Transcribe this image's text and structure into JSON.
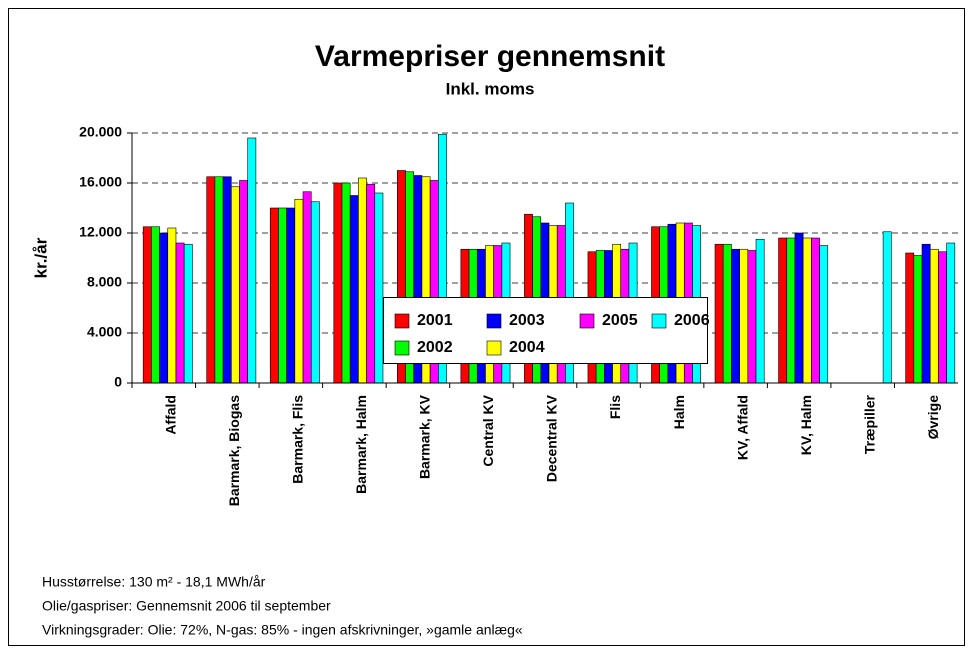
{
  "chart_data": {
    "type": "bar",
    "title": "Varmepriser gennemsnit",
    "subtitle": "Inkl. moms",
    "y_label": "kr./år",
    "categories": [
      "Affald",
      "Barmark, Biogas",
      "Barmark, Flis",
      "Barmark, Halm",
      "Barmark, KV",
      "Central KV",
      "Decentral KV",
      "Flis",
      "Halm",
      "KV, Affald",
      "KV, Halm",
      "Træpiller",
      "Øvrige"
    ],
    "series": [
      {
        "name": "2001",
        "color": "#ff0000",
        "values": [
          12500,
          16500,
          14000,
          16000,
          17000,
          10700,
          13500,
          10500,
          12500,
          11100,
          11600,
          0,
          10400
        ]
      },
      {
        "name": "2002",
        "color": "#00ff00",
        "values": [
          12500,
          16500,
          14000,
          16000,
          16900,
          10700,
          13300,
          10600,
          12500,
          11100,
          11600,
          0,
          10200
        ]
      },
      {
        "name": "2003",
        "color": "#0000ff",
        "values": [
          12000,
          16500,
          14000,
          15000,
          16600,
          10700,
          12800,
          10600,
          12700,
          10700,
          12000,
          0,
          11100
        ]
      },
      {
        "name": "2004",
        "color": "#ffff00",
        "values": [
          12400,
          15700,
          14700,
          16400,
          16500,
          11000,
          12600,
          11100,
          12800,
          10700,
          11600,
          0,
          10700
        ]
      },
      {
        "name": "2005",
        "color": "#ff00ff",
        "values": [
          11200,
          16200,
          15300,
          15900,
          16200,
          11000,
          12600,
          10700,
          12800,
          10600,
          11600,
          0,
          10500
        ]
      },
      {
        "name": "2006",
        "color": "#00ffff",
        "values": [
          11100,
          19600,
          14500,
          15200,
          19900,
          11200,
          14400,
          11200,
          12600,
          11500,
          11000,
          12100,
          11200
        ]
      }
    ],
    "ylim": [
      0,
      20000
    ],
    "yticks": [
      0,
      {
        "value": 4000,
        "label": "4.000"
      },
      {
        "value": 8000,
        "label": "8.000"
      },
      {
        "value": 12000,
        "label": "12.000"
      },
      {
        "value": 16000,
        "label": "16.000"
      },
      {
        "value": 20000,
        "label": "20.000"
      }
    ],
    "grid": true,
    "notes": [
      "Husstørrelse: 130 m² - 18,1 MWh/år",
      "Olie/gaspriser: Gennemsnit 2006 til september",
      "Virkningsgrader: Olie: 72%, N-gas: 85% - ingen afskrivninger, »gamle anlæg«"
    ]
  }
}
